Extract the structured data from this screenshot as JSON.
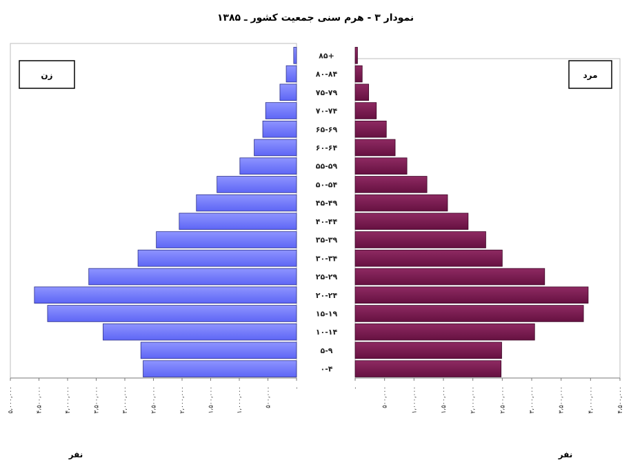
{
  "chart_data": {
    "type": "bar",
    "orientation": "horizontal",
    "title": "نمودار ۳ - هرم سنی جمعیت کشور ـ ۱۳۸۵",
    "categories": [
      "۸۵+",
      "۸۰-۸۴",
      "۷۵-۷۹",
      "۷۰-۷۴",
      "۶۵-۶۹",
      "۶۰-۶۴",
      "۵۵-۵۹",
      "۵۰-۵۴",
      "۴۵-۴۹",
      "۴۰-۴۴",
      "۳۵-۳۹",
      "۳۰-۳۴",
      "۲۵-۲۹",
      "۲۰-۲۴",
      "۱۵-۱۹",
      "۱۰-۱۴",
      "۵-۹",
      "۰-۴"
    ],
    "series": [
      {
        "name": "زن",
        "color": "#6b72ff",
        "values": [
          50000,
          180000,
          290000,
          540000,
          590000,
          740000,
          990000,
          1390000,
          1750000,
          2050000,
          2450000,
          2770000,
          3630000,
          4580000,
          4350000,
          3380000,
          2720000,
          2680000
        ]
      },
      {
        "name": "مرد",
        "color": "#7a1a4e",
        "values": [
          40000,
          120000,
          230000,
          360000,
          530000,
          680000,
          880000,
          1220000,
          1570000,
          1920000,
          2220000,
          2500000,
          3220000,
          3960000,
          3880000,
          3050000,
          2490000,
          2480000
        ]
      }
    ],
    "female_ticks": [
      "۰",
      "۵۰۰،۰۰۰",
      "۱،۰۰۰،۰۰۰",
      "۱،۵۰۰،۰۰۰",
      "۲،۰۰۰،۰۰۰",
      "۲،۵۰۰،۰۰۰",
      "۳،۰۰۰،۰۰۰",
      "۳،۵۰۰،۰۰۰",
      "۴،۰۰۰،۰۰۰",
      "۴،۵۰۰،۰۰۰",
      "۵،۰۰۰،۰۰۰"
    ],
    "male_ticks": [
      "۰",
      "۵۰۰،۰۰۰",
      "۱،۰۰۰،۰۰۰",
      "۱،۵۰۰،۰۰۰",
      "۲،۰۰۰،۰۰۰",
      "۲،۵۰۰،۰۰۰",
      "۳،۰۰۰،۰۰۰",
      "۳،۵۰۰،۰۰۰",
      "۴،۰۰۰،۰۰۰",
      "۴،۵۰۰،۰۰۰"
    ],
    "female_xlim": [
      0,
      5000000
    ],
    "male_xlim": [
      0,
      4500000
    ],
    "xlabel": "نفر",
    "legend_female": "زن",
    "legend_male": "مرد"
  }
}
